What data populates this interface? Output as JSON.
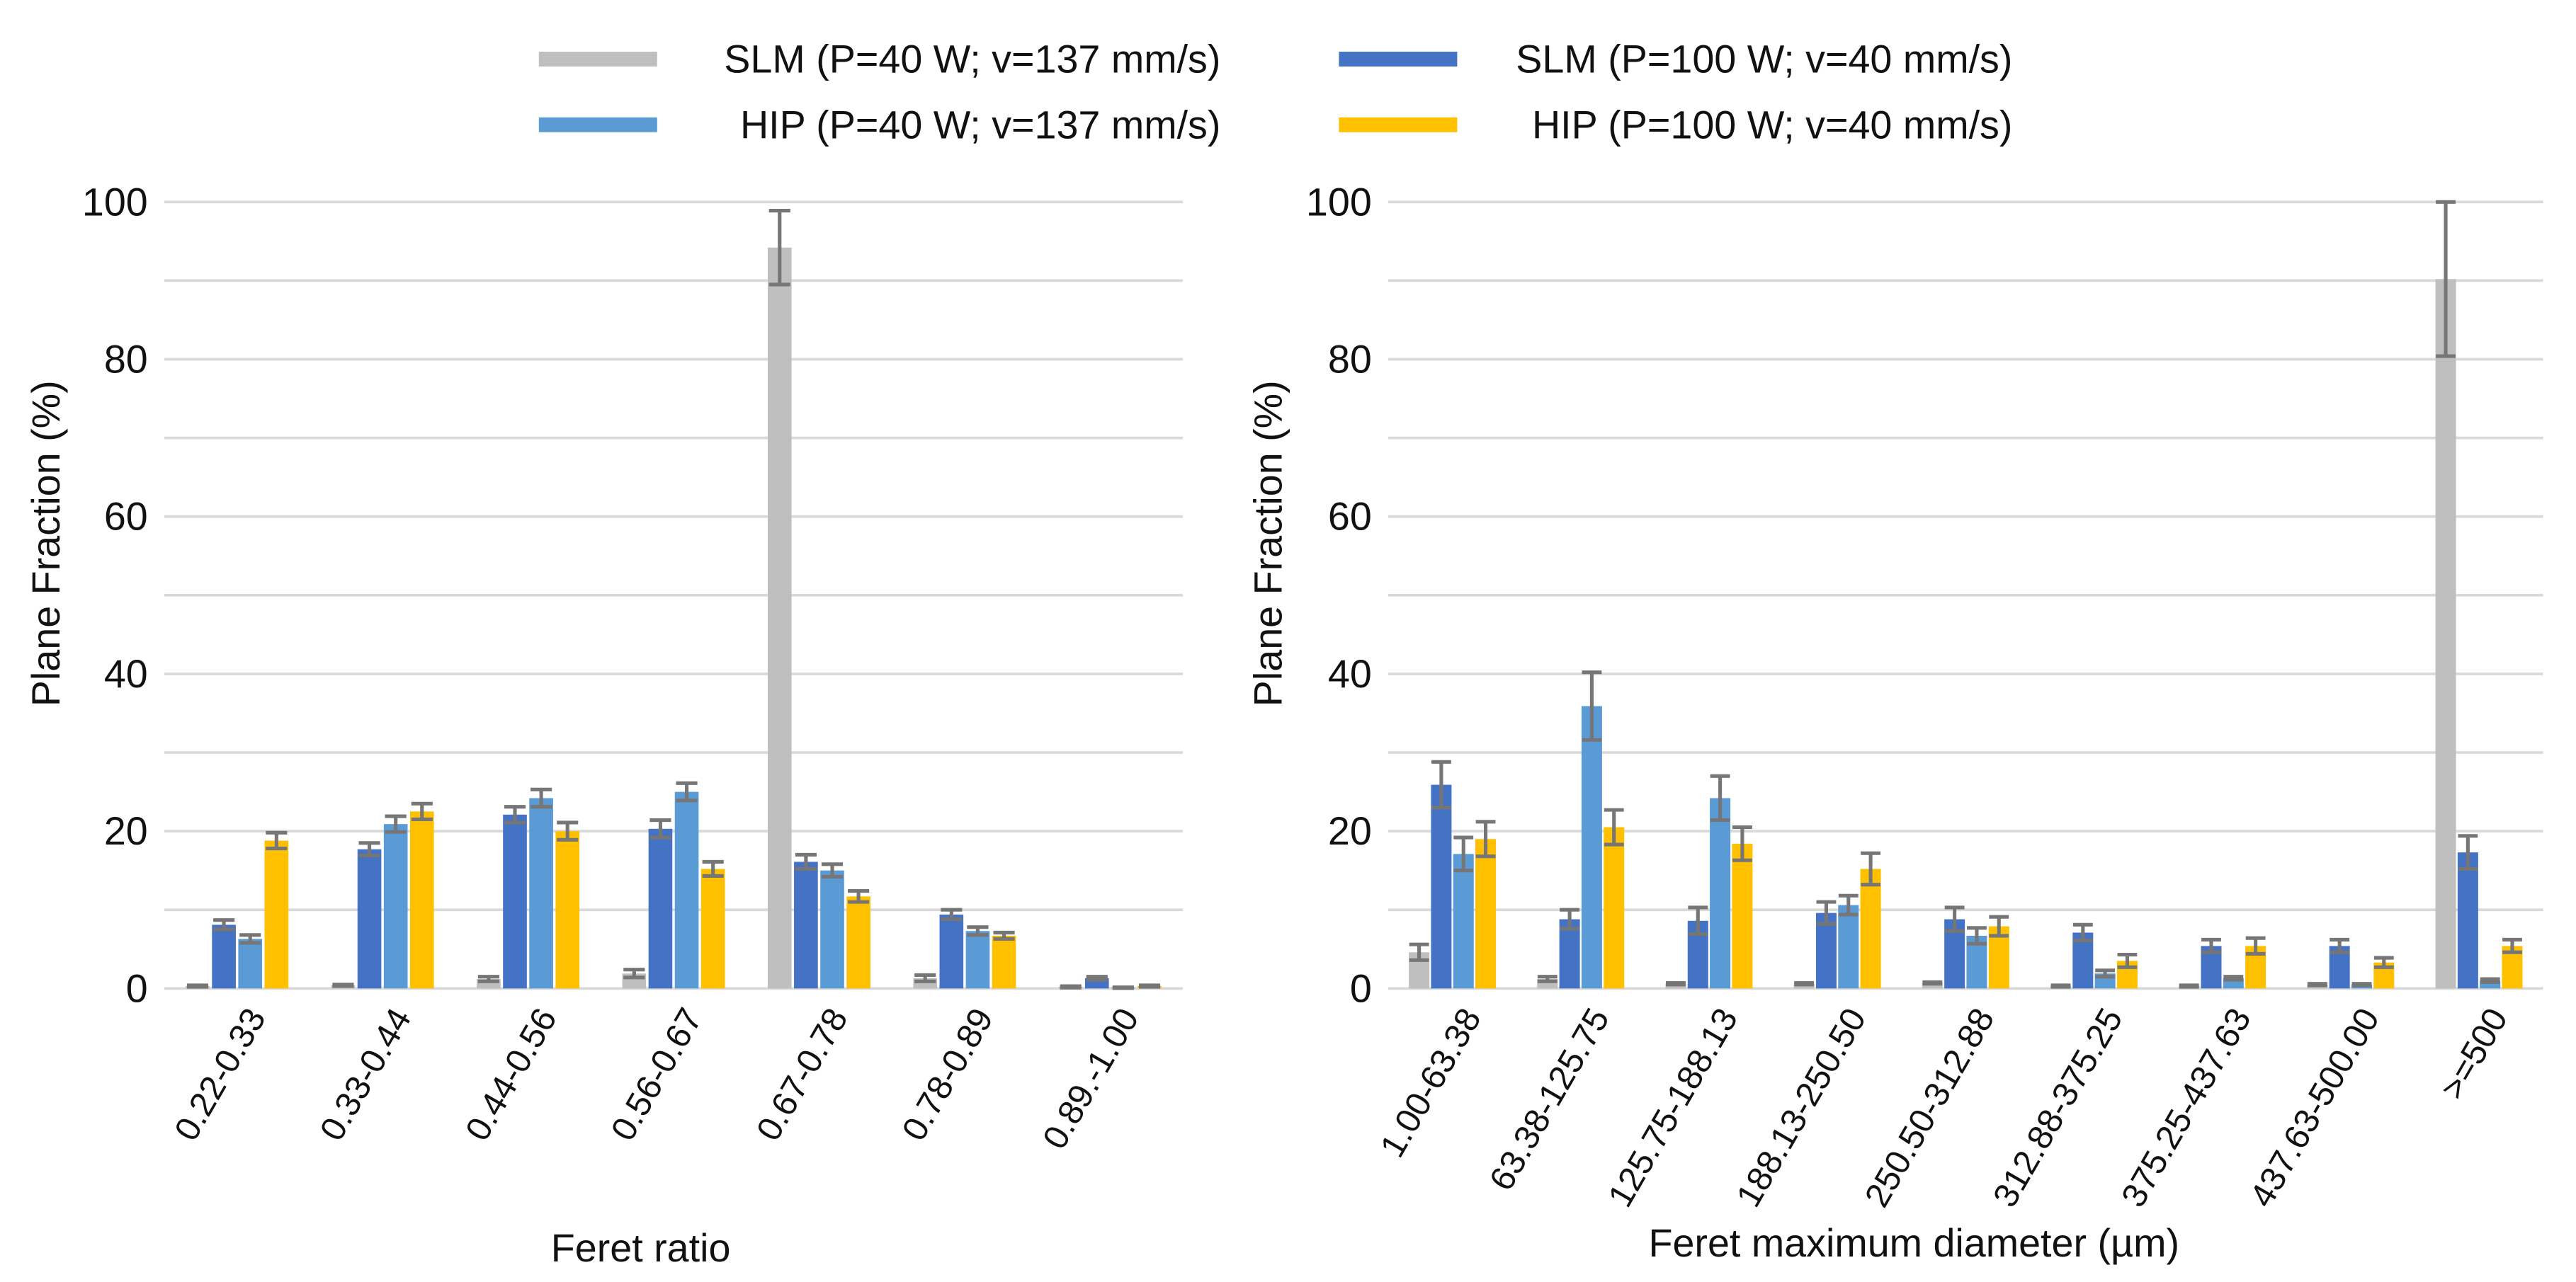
{
  "chart_data": [
    {
      "type": "bar",
      "xlabel": "Feret ratio",
      "ylabel": "Plane Fraction (%)",
      "ylim": [
        0,
        100
      ],
      "yticks": [
        0,
        20,
        40,
        60,
        80,
        100
      ],
      "gridline_step": 10,
      "grid": true,
      "legend_position": "top",
      "categories": [
        "0.22-0.33",
        "0.33-0.44",
        "0.44-0.56",
        "0.56-0.67",
        "0.67-0.78",
        "0.78-0.89",
        "0.89.-1.00"
      ],
      "series": [
        {
          "name": "SLM (P=40 W; v=137 mm/s)",
          "color": "#BFBFBF",
          "values": [
            0.3,
            0.4,
            1.2,
            1.9,
            94.2,
            1.3,
            0.2
          ],
          "errors": [
            0.1,
            0.1,
            0.3,
            0.5,
            4.7,
            0.4,
            0.1
          ]
        },
        {
          "name": "SLM (P=100 W; v=40 mm/s)",
          "color": "#4472C4",
          "values": [
            8.1,
            17.7,
            22.1,
            20.3,
            16.1,
            9.4,
            1.3
          ],
          "errors": [
            0.6,
            0.8,
            1.0,
            1.1,
            0.9,
            0.6,
            0.2
          ]
        },
        {
          "name": "HIP (P=40 W; v=137 mm/s)",
          "color": "#5B9BD5",
          "values": [
            6.3,
            20.9,
            24.2,
            25.0,
            15.0,
            7.3,
            0.1
          ],
          "errors": [
            0.5,
            1.0,
            1.1,
            1.1,
            0.8,
            0.5,
            0.05
          ]
        },
        {
          "name": "HIP (P=100 W; v=40 mm/s)",
          "color": "#FFC000",
          "values": [
            18.8,
            22.5,
            20.0,
            15.2,
            11.7,
            6.7,
            0.3
          ],
          "errors": [
            1.0,
            1.0,
            1.1,
            0.9,
            0.7,
            0.4,
            0.1
          ]
        }
      ]
    },
    {
      "type": "bar",
      "xlabel": "Feret maximum diameter (µm)",
      "ylabel": "Plane Fraction (%)",
      "ylim": [
        0,
        100
      ],
      "yticks": [
        0,
        20,
        40,
        60,
        80,
        100
      ],
      "gridline_step": 10,
      "grid": true,
      "legend_position": "top",
      "categories": [
        "1.00-63.38",
        "63.38-125.75",
        "125.75-188.13",
        "188.13-250.50",
        "250.50-312.88",
        "312.88-375.25",
        "375.25-437.63",
        "437.63-500.00",
        ">=500"
      ],
      "series": [
        {
          "name": "SLM (P=40 W; v=137 mm/s)",
          "color": "#BFBFBF",
          "values": [
            4.6,
            1.2,
            0.6,
            0.6,
            0.7,
            0.3,
            0.3,
            0.5,
            90.2
          ],
          "errors": [
            1.0,
            0.3,
            0.1,
            0.1,
            0.1,
            0.1,
            0.1,
            0.1,
            9.8
          ]
        },
        {
          "name": "SLM (P=100 W; v=40 mm/s)",
          "color": "#4472C4",
          "values": [
            25.9,
            8.8,
            8.6,
            9.6,
            8.8,
            7.1,
            5.4,
            5.4,
            17.3
          ],
          "errors": [
            2.9,
            1.2,
            1.7,
            1.4,
            1.5,
            1.0,
            0.8,
            0.8,
            2.1
          ]
        },
        {
          "name": "HIP (P=40 W; v=137 mm/s)",
          "color": "#5B9BD5",
          "values": [
            17.1,
            35.9,
            24.2,
            10.6,
            6.7,
            1.9,
            1.3,
            0.5,
            1.0
          ],
          "errors": [
            2.1,
            4.3,
            2.8,
            1.2,
            1.0,
            0.4,
            0.2,
            0.1,
            0.2
          ]
        },
        {
          "name": "HIP (P=100 W; v=40 mm/s)",
          "color": "#FFC000",
          "values": [
            19.0,
            20.5,
            18.4,
            15.2,
            7.9,
            3.5,
            5.4,
            3.3,
            5.4
          ],
          "errors": [
            2.2,
            2.2,
            2.1,
            2.0,
            1.2,
            0.8,
            1.0,
            0.6,
            0.8
          ]
        }
      ]
    }
  ]
}
